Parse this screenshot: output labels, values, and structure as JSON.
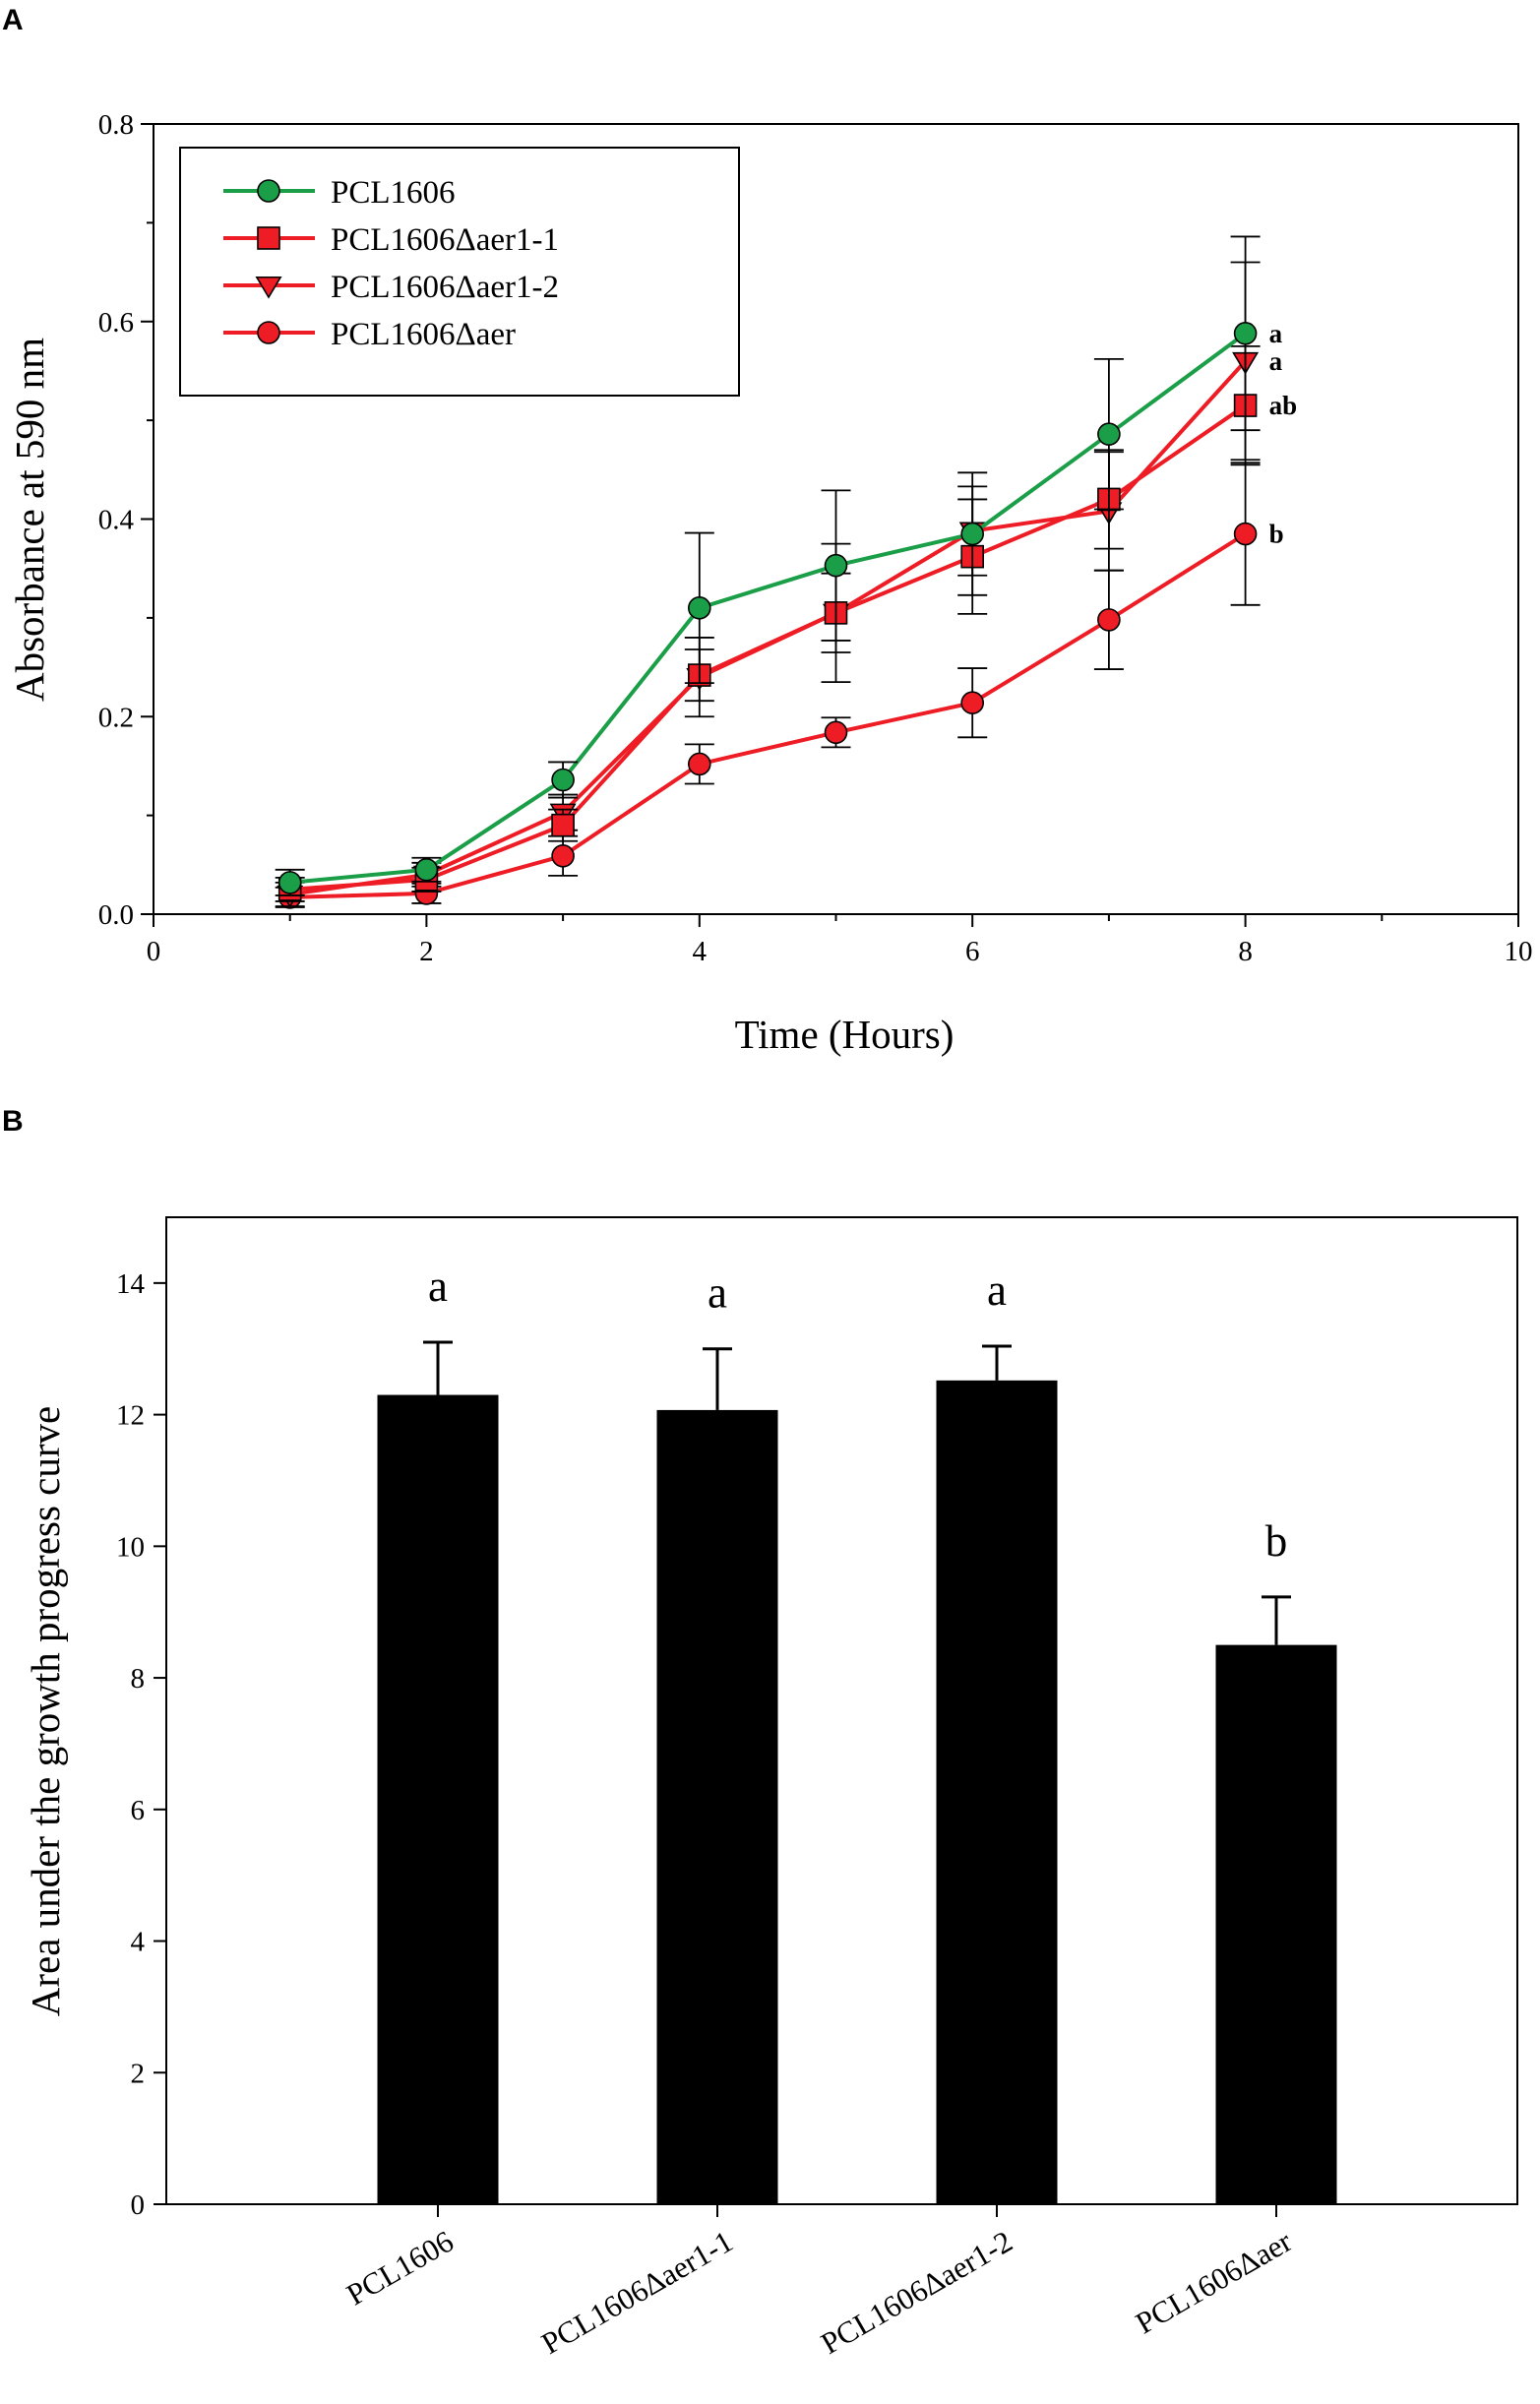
{
  "colors": {
    "green": "#1a9e47",
    "red": "#ee1c24",
    "black": "#000000"
  },
  "chart_data": [
    {
      "panel": "A",
      "type": "line",
      "title": "",
      "xlabel": "Time (Hours)",
      "ylabel": "Absorbance at 590 nm",
      "xlim": [
        0,
        10
      ],
      "ylim": [
        0,
        0.8
      ],
      "xticks": [
        "0",
        "2",
        "4",
        "6",
        "8",
        "10"
      ],
      "yticks": [
        "0.0",
        "0.2",
        "0.4",
        "0.6",
        "0.8"
      ],
      "legend_position": "top-left",
      "grid": false,
      "x": [
        1,
        2,
        3,
        4,
        5,
        6,
        7,
        8
      ],
      "series": [
        {
          "name": "PCL1606",
          "marker": "circle",
          "color": "#1a9e47",
          "values": [
            0.032,
            0.045,
            0.136,
            0.31,
            0.353,
            0.385,
            0.486,
            0.588
          ],
          "errors": [
            0.013,
            0.012,
            0.018,
            0.076,
            0.076,
            0.062,
            0.076,
            0.098
          ]
        },
        {
          "name": "PCL1606Δaer1-1",
          "marker": "square",
          "color": "#ee1c24",
          "values": [
            0.025,
            0.035,
            0.09,
            0.242,
            0.305,
            0.362,
            0.42,
            0.515
          ],
          "errors": [
            0.012,
            0.012,
            0.016,
            0.026,
            0.04,
            0.058,
            0.05,
            0.06
          ]
        },
        {
          "name": "PCL1606Δaer1-2",
          "marker": "triangle-down",
          "color": "#ee1c24",
          "values": [
            0.02,
            0.04,
            0.103,
            0.24,
            0.305,
            0.388,
            0.408,
            0.56
          ],
          "errors": [
            0.012,
            0.012,
            0.018,
            0.04,
            0.07,
            0.045,
            0.06,
            0.1
          ]
        },
        {
          "name": "PCL1606Δaer",
          "marker": "circle",
          "color": "#ee1c24",
          "values": [
            0.017,
            0.021,
            0.059,
            0.152,
            0.184,
            0.214,
            0.298,
            0.385
          ],
          "errors": [
            0.01,
            0.01,
            0.02,
            0.02,
            0.015,
            0.035,
            0.05,
            0.072
          ]
        }
      ],
      "annotations": [
        {
          "series": "PCL1606",
          "text": "a"
        },
        {
          "series": "PCL1606Δaer1-2",
          "text": "a"
        },
        {
          "series": "PCL1606Δaer1-1",
          "text": "ab"
        },
        {
          "series": "PCL1606Δaer",
          "text": "b"
        }
      ]
    },
    {
      "panel": "B",
      "type": "bar",
      "title": "",
      "xlabel": "",
      "ylabel": "Area under the growth progress curve",
      "ylim": [
        0,
        15
      ],
      "yticks": [
        "0",
        "2",
        "4",
        "6",
        "8",
        "10",
        "12",
        "14"
      ],
      "grid": false,
      "categories": [
        "PCL1606",
        "PCL1606Δaer1-1",
        "PCL1606Δaer1-2",
        "PCL1606Δaer"
      ],
      "values": [
        12.3,
        12.07,
        12.52,
        8.5
      ],
      "errors": [
        0.8,
        0.93,
        0.52,
        0.73
      ],
      "letters": [
        "a",
        "a",
        "a",
        "b"
      ],
      "bar_color": "#000000"
    }
  ]
}
